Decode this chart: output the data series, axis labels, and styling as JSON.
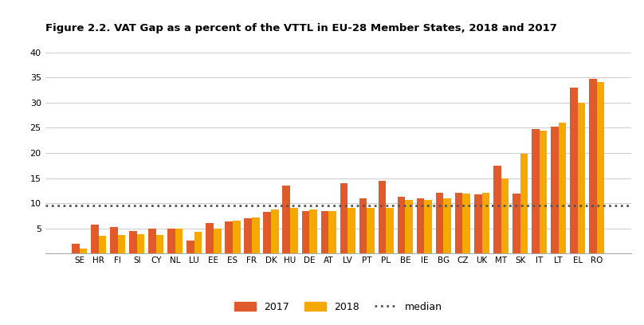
{
  "title": "Figure 2.2. VAT Gap as a percent of the VTTL in EU-28 Member States, 2018 and 2017",
  "categories": [
    "SE",
    "HR",
    "FI",
    "SI",
    "CY",
    "NL",
    "LU",
    "EE",
    "ES",
    "FR",
    "DK",
    "HU",
    "DE",
    "AT",
    "LV",
    "PT",
    "PL",
    "BE",
    "IE",
    "BG",
    "CZ",
    "UK",
    "MT",
    "SK",
    "IT",
    "LT",
    "EL",
    "RO"
  ],
  "values_2017": [
    2.0,
    5.7,
    5.2,
    4.4,
    5.0,
    4.9,
    2.5,
    6.0,
    6.3,
    7.0,
    8.3,
    13.5,
    8.5,
    8.4,
    13.9,
    11.0,
    14.4,
    11.3,
    11.0,
    12.1,
    12.0,
    11.8,
    17.5,
    11.9,
    24.7,
    25.2,
    33.0,
    34.8
  ],
  "values_2018": [
    1.0,
    3.5,
    3.7,
    3.9,
    3.7,
    5.0,
    4.3,
    5.0,
    6.5,
    7.2,
    8.7,
    9.0,
    8.7,
    8.5,
    9.0,
    9.0,
    9.1,
    10.6,
    10.7,
    11.0,
    11.9,
    12.1,
    15.0,
    19.8,
    24.5,
    26.0,
    30.0,
    34.1
  ],
  "median": 9.5,
  "color_2017": "#e05a2b",
  "color_2018": "#f5a800",
  "color_median": "#555555",
  "ylim": [
    0,
    42
  ],
  "yticks": [
    5,
    10,
    15,
    20,
    25,
    30,
    35,
    40
  ],
  "legend_labels": [
    "2017",
    "2018",
    "median"
  ],
  "background_color": "#ffffff",
  "grid_color": "#cccccc"
}
